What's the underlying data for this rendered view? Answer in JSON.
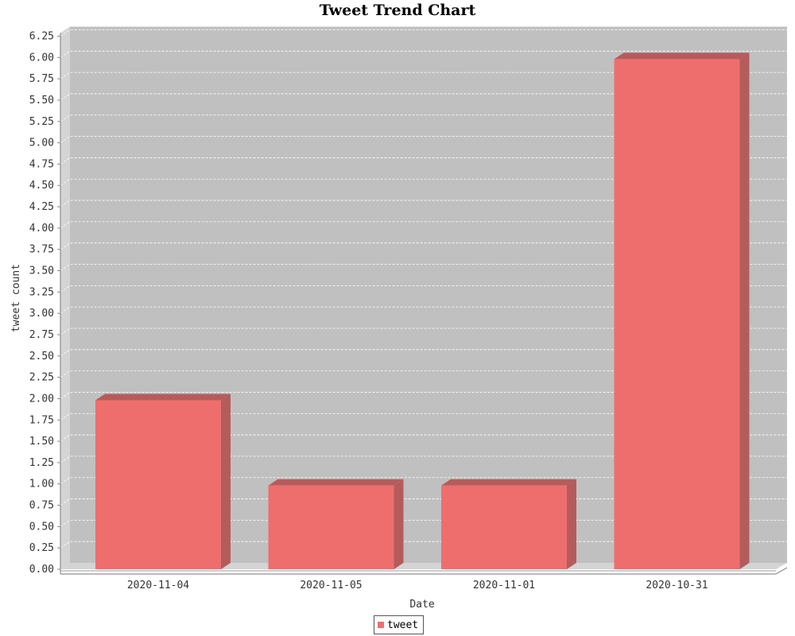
{
  "chart_data": {
    "type": "bar",
    "title": "Tweet Trend Chart",
    "xlabel": "Date",
    "ylabel": "tweet count",
    "categories": [
      "2020-11-04",
      "2020-11-05",
      "2020-11-01",
      "2020-10-31"
    ],
    "series": [
      {
        "name": "tweet",
        "values": [
          2,
          1,
          1,
          6
        ]
      }
    ],
    "ylim": [
      0,
      6.25
    ],
    "ytick_step": 0.25,
    "grid": true,
    "legend_position": "bottom-center",
    "colors": {
      "bar": "#ee6e6e",
      "bar_shadow": "#b45c5c",
      "plot_background": "#c0c0c0",
      "plot_wall": "#d4d4d4",
      "gridline": "#ffffff"
    }
  }
}
